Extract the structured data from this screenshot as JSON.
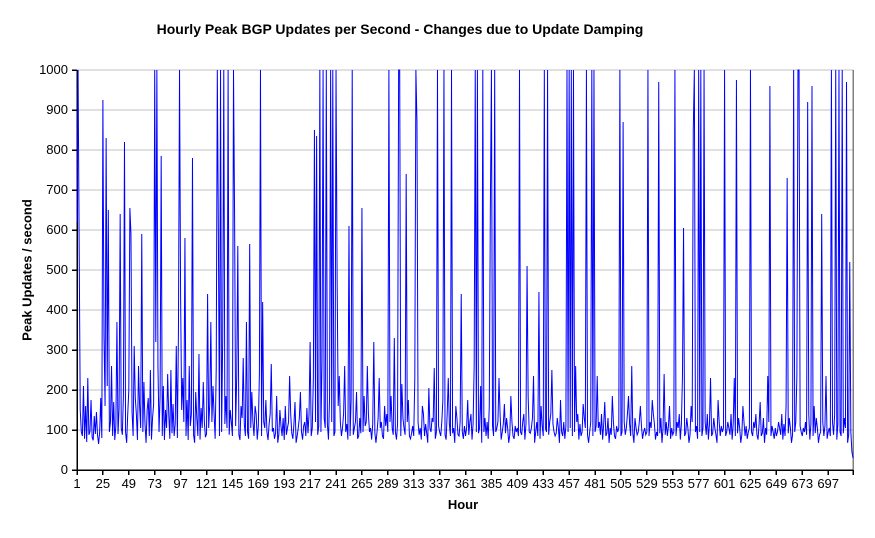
{
  "chart_data": {
    "type": "line",
    "title": "Hourly Peak BGP Updates per Second - Changes due to Update Damping",
    "xlabel": "Hour",
    "ylabel": "Peak Updates / second",
    "xlim": [
      1,
      720
    ],
    "ylim": [
      0,
      1000
    ],
    "grid": "horizontal",
    "legend": "none",
    "x_tick_labels": [
      1,
      25,
      49,
      73,
      97,
      121,
      145,
      169,
      193,
      217,
      241,
      265,
      289,
      313,
      337,
      361,
      385,
      409,
      433,
      457,
      481,
      505,
      529,
      553,
      577,
      601,
      625,
      649,
      673,
      697
    ],
    "y_ticks": [
      0,
      100,
      200,
      300,
      400,
      500,
      600,
      700,
      800,
      900,
      1000
    ],
    "colors": {
      "line": "#0000ff",
      "gridline": "#c0c0c0",
      "plot_border": "#808080",
      "axis": "#000000",
      "background": "#ffffff",
      "text": "#000000"
    },
    "series": [
      {
        "name": "Peak Updates / second",
        "x_start": 1,
        "x_step": 1,
        "values": [
          620,
          1000,
          560,
          150,
          95,
          85,
          210,
          78,
          160,
          70,
          230,
          88,
          96,
          175,
          82,
          74,
          135,
          90,
          145,
          88,
          65,
          95,
          180,
          80,
          925,
          340,
          160,
          830,
          210,
          650,
          95,
          120,
          260,
          85,
          170,
          75,
          110,
          370,
          90,
          155,
          640,
          105,
          88,
          185,
          820,
          95,
          68,
          140,
          200,
          655,
          590,
          145,
          85,
          310,
          180,
          140,
          75,
          260,
          160,
          105,
          590,
          95,
          220,
          115,
          68,
          150,
          180,
          85,
          250,
          76,
          130,
          165,
          1000,
          320,
          1000,
          260,
          95,
          185,
          785,
          85,
          210,
          75,
          150,
          105,
          240,
          140,
          78,
          250,
          92,
          165,
          85,
          115,
          310,
          80,
          350,
          1000,
          430,
          150,
          230,
          120,
          580,
          85,
          175,
          75,
          260,
          110,
          140,
          780,
          88,
          68,
          195,
          130,
          85,
          290,
          76,
          155,
          105,
          220,
          120,
          82,
          90,
          440,
          105,
          165,
          370,
          120,
          210,
          140,
          78,
          255,
          1000,
          590,
          85,
          1000,
          95,
          330,
          1000,
          115,
          185,
          105,
          1000,
          88,
          150,
          120,
          85,
          1000,
          640,
          110,
          235,
          560,
          88,
          75,
          160,
          130,
          280,
          115,
          85,
          370,
          95,
          78,
          565,
          105,
          195,
          120,
          85,
          160,
          140,
          76,
          110,
          240,
          1000,
          85,
          420,
          120,
          105,
          175,
          95,
          75,
          115,
          140,
          265,
          96,
          105,
          78,
          92,
          185,
          68,
          88,
          150,
          110,
          85,
          130,
          75,
          160,
          88,
          105,
          120,
          235,
          140,
          92,
          78,
          115,
          170,
          68,
          85,
          105,
          130,
          195,
          95,
          76,
          110,
          120,
          85,
          155,
          92,
          140,
          320,
          85,
          105,
          230,
          850,
          120,
          835,
          88,
          110,
          1000,
          95,
          270,
          1000,
          130,
          105,
          1000,
          115,
          76,
          180,
          1000,
          120,
          1000,
          85,
          95,
          1000,
          480,
          160,
          235,
          120,
          85,
          105,
          140,
          260,
          95,
          115,
          76,
          610,
          85,
          175,
          1000,
          88,
          105,
          120,
          195,
          78,
          85,
          130,
          92,
          655,
          95,
          185,
          110,
          120,
          260,
          140,
          95,
          105,
          76,
          115,
          320,
          92,
          68,
          95,
          130,
          230,
          105,
          120,
          85,
          78,
          160,
          110,
          140,
          95,
          1000,
          120,
          185,
          105,
          88,
          330,
          95,
          76,
          115,
          1000,
          1000,
          85,
          215,
          130,
          105,
          88,
          740,
          120,
          175,
          85,
          78,
          92,
          110,
          85,
          230,
          1000,
          870,
          120,
          88,
          105,
          76,
          160,
          140,
          85,
          115,
          92,
          68,
          205,
          105,
          95,
          130,
          120,
          255,
          78,
          95,
          1000,
          110,
          95,
          85,
          120,
          175,
          1000,
          88,
          76,
          140,
          230,
          115,
          85,
          1000,
          92,
          105,
          68,
          160,
          130,
          88,
          85,
          120,
          440,
          95,
          78,
          110,
          85,
          105,
          175,
          88,
          120,
          140,
          76,
          115,
          260,
          1000,
          95,
          1000,
          92,
          105,
          210,
          68,
          1000,
          95,
          130,
          85,
          120,
          78,
          160,
          655,
          1000,
          110,
          85,
          1000,
          95,
          105,
          120,
          230,
          140,
          76,
          95,
          115,
          165,
          92,
          130,
          105,
          68,
          88,
          185,
          120,
          85,
          78,
          110,
          95,
          105,
          85,
          1000,
          95,
          88,
          120,
          140,
          76,
          115,
          510,
          185,
          95,
          92,
          105,
          130,
          235,
          68,
          95,
          120,
          85,
          445,
          78,
          160,
          110,
          85,
          1000,
          105,
          95,
          1000,
          88,
          120,
          140,
          250,
          115,
          95,
          85,
          92,
          130,
          105,
          68,
          175,
          95,
          85,
          120,
          78,
          110,
          1000,
          95,
          1000,
          105,
          1000,
          85,
          1000,
          95,
          260,
          120,
          140,
          76,
          115,
          85,
          95,
          165,
          130,
          105,
          1000,
          88,
          68,
          95,
          120,
          1000,
          85,
          1000,
          95,
          110,
          235,
          105,
          120,
          88,
          140,
          76,
          115,
          170,
          85,
          92,
          130,
          68,
          105,
          88,
          185,
          120,
          85,
          78,
          110,
          95,
          105,
          1000,
          85,
          95,
          870,
          120,
          88,
          105,
          140,
          185,
          115,
          85,
          260,
          92,
          68,
          130,
          105,
          88,
          95,
          120,
          160,
          110,
          78,
          95,
          105,
          88,
          95,
          1000,
          85,
          120,
          105,
          175,
          140,
          115,
          76,
          95,
          85,
          970,
          92,
          130,
          68,
          105,
          240,
          88,
          120,
          85,
          110,
          160,
          78,
          105,
          88,
          95,
          1000,
          85,
          120,
          105,
          140,
          76,
          115,
          235,
          605,
          85,
          92,
          130,
          105,
          68,
          88,
          160,
          120,
          850,
          1000,
          95,
          110,
          78,
          1000,
          95,
          1000,
          85,
          105,
          1000,
          120,
          88,
          140,
          76,
          115,
          230,
          85,
          92,
          130,
          105,
          88,
          68,
          175,
          120,
          85,
          110,
          95,
          105,
          1000,
          85,
          95,
          120,
          105,
          88,
          140,
          76,
          115,
          230,
          85,
          975,
          92,
          130,
          105,
          68,
          88,
          160,
          120,
          85,
          110,
          78,
          95,
          105,
          1000,
          95,
          85,
          120,
          105,
          140,
          88,
          76,
          115,
          170,
          85,
          92,
          130,
          68,
          105,
          88,
          235,
          120,
          960,
          85,
          110,
          95,
          78,
          105,
          85,
          95,
          120,
          105,
          88,
          140,
          76,
          115,
          85,
          160,
          730,
          92,
          130,
          105,
          68,
          88,
          1000,
          95,
          120,
          235,
          1000,
          1000,
          110,
          95,
          85,
          105,
          95,
          120,
          88,
          920,
          140,
          76,
          115,
          960,
          85,
          160,
          92,
          130,
          105,
          68,
          88,
          95,
          640,
          120,
          85,
          110,
          235,
          78,
          95,
          105,
          85,
          1000,
          120,
          88,
          140,
          1000,
          76,
          115,
          1000,
          95,
          85,
          1000,
          92,
          130,
          105,
          970,
          68,
          88,
          520,
          95,
          45,
          30
        ]
      }
    ]
  }
}
